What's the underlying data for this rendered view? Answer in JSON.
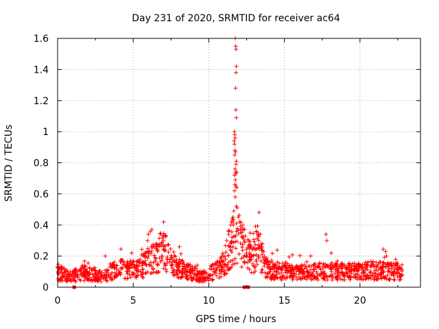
{
  "chart_data": {
    "type": "scatter",
    "title": "Day 231 of 2020, SRMTID for receiver ac64",
    "xlabel": "GPS time / hours",
    "ylabel": "SRMTID / TECUs",
    "xlim": [
      0,
      24
    ],
    "ylim": [
      0,
      1.6
    ],
    "xticks": [
      0,
      5,
      10,
      15,
      20
    ],
    "yticks": [
      0,
      0.2,
      0.4,
      0.6,
      0.8,
      1,
      1.2,
      1.4,
      1.6
    ],
    "xtick_labels": [
      "0",
      "5",
      "10",
      "15",
      "20"
    ],
    "ytick_labels": [
      "0",
      "0.2",
      "0.4",
      "0.6",
      "0.8",
      "1",
      "1.2",
      "1.4",
      "1.6"
    ],
    "grid": true,
    "marker": "+",
    "color": "#ff0000",
    "series": [
      {
        "name": "SRMTID",
        "baseline_profile": [
          [
            0.0,
            0.09
          ],
          [
            0.5,
            0.08
          ],
          [
            1.0,
            0.07
          ],
          [
            1.5,
            0.09
          ],
          [
            2.0,
            0.09
          ],
          [
            2.5,
            0.08
          ],
          [
            3.0,
            0.07
          ],
          [
            3.5,
            0.1
          ],
          [
            4.0,
            0.11
          ],
          [
            4.5,
            0.12
          ],
          [
            5.0,
            0.11
          ],
          [
            5.5,
            0.12
          ],
          [
            6.0,
            0.17
          ],
          [
            6.5,
            0.2
          ],
          [
            7.0,
            0.24
          ],
          [
            7.5,
            0.16
          ],
          [
            8.0,
            0.12
          ],
          [
            8.5,
            0.1
          ],
          [
            9.0,
            0.09
          ],
          [
            9.5,
            0.07
          ],
          [
            10.0,
            0.09
          ],
          [
            10.5,
            0.1
          ],
          [
            11.0,
            0.15
          ],
          [
            11.5,
            0.28
          ],
          [
            12.0,
            0.3
          ],
          [
            12.5,
            0.22
          ],
          [
            13.0,
            0.2
          ],
          [
            13.3,
            0.28
          ],
          [
            13.6,
            0.15
          ],
          [
            14.0,
            0.11
          ],
          [
            15.0,
            0.1
          ],
          [
            16.0,
            0.09
          ],
          [
            17.0,
            0.1
          ],
          [
            18.0,
            0.1
          ],
          [
            19.0,
            0.1
          ],
          [
            20.0,
            0.1
          ],
          [
            21.0,
            0.11
          ],
          [
            22.0,
            0.1
          ],
          [
            22.8,
            0.1
          ]
        ],
        "peak_points": [
          [
            11.75,
            1.6
          ],
          [
            11.78,
            1.55
          ],
          [
            11.8,
            1.53
          ],
          [
            11.82,
            1.42
          ],
          [
            11.8,
            1.38
          ],
          [
            11.77,
            1.28
          ],
          [
            11.79,
            1.14
          ],
          [
            11.82,
            1.09
          ],
          [
            11.7,
            1.0
          ],
          [
            11.72,
            0.98
          ],
          [
            11.74,
            0.96
          ],
          [
            11.68,
            0.94
          ],
          [
            11.7,
            0.92
          ],
          [
            11.73,
            0.88
          ],
          [
            11.76,
            0.87
          ],
          [
            11.71,
            0.85
          ],
          [
            11.82,
            0.81
          ],
          [
            11.8,
            0.79
          ],
          [
            11.74,
            0.76
          ],
          [
            11.77,
            0.74
          ],
          [
            11.79,
            0.73
          ],
          [
            11.85,
            0.74
          ],
          [
            11.7,
            0.72
          ],
          [
            11.76,
            0.69
          ],
          [
            11.73,
            0.66
          ],
          [
            11.79,
            0.65
          ],
          [
            11.85,
            0.64
          ],
          [
            11.7,
            0.62
          ],
          [
            11.75,
            0.58
          ],
          [
            11.82,
            0.52
          ],
          [
            11.88,
            0.51
          ],
          [
            11.65,
            0.49
          ],
          [
            11.6,
            0.45
          ],
          [
            11.55,
            0.44
          ],
          [
            11.5,
            0.42
          ],
          [
            11.62,
            0.4
          ],
          [
            11.45,
            0.4
          ],
          [
            11.95,
            0.45
          ],
          [
            12.05,
            0.42
          ],
          [
            12.25,
            0.4
          ],
          [
            12.2,
            0.38
          ],
          [
            11.3,
            0.36
          ],
          [
            12.1,
            0.35
          ],
          [
            13.15,
            0.36
          ],
          [
            13.25,
            0.34
          ],
          [
            13.2,
            0.31
          ],
          [
            13.3,
            0.3
          ],
          [
            6.95,
            0.33
          ],
          [
            7.0,
            0.3
          ],
          [
            6.0,
            0.34
          ],
          [
            5.95,
            0.3
          ],
          [
            17.75,
            0.34
          ],
          [
            17.8,
            0.3
          ],
          [
            18.1,
            0.22
          ],
          [
            21.7,
            0.23
          ],
          [
            21.75,
            0.2
          ],
          [
            4.9,
            0.22
          ],
          [
            3.15,
            0.2
          ],
          [
            8.05,
            0.26
          ],
          [
            6.55,
            0.28
          ]
        ],
        "zero_points": [
          1.1,
          12.35,
          12.6
        ]
      }
    ]
  }
}
